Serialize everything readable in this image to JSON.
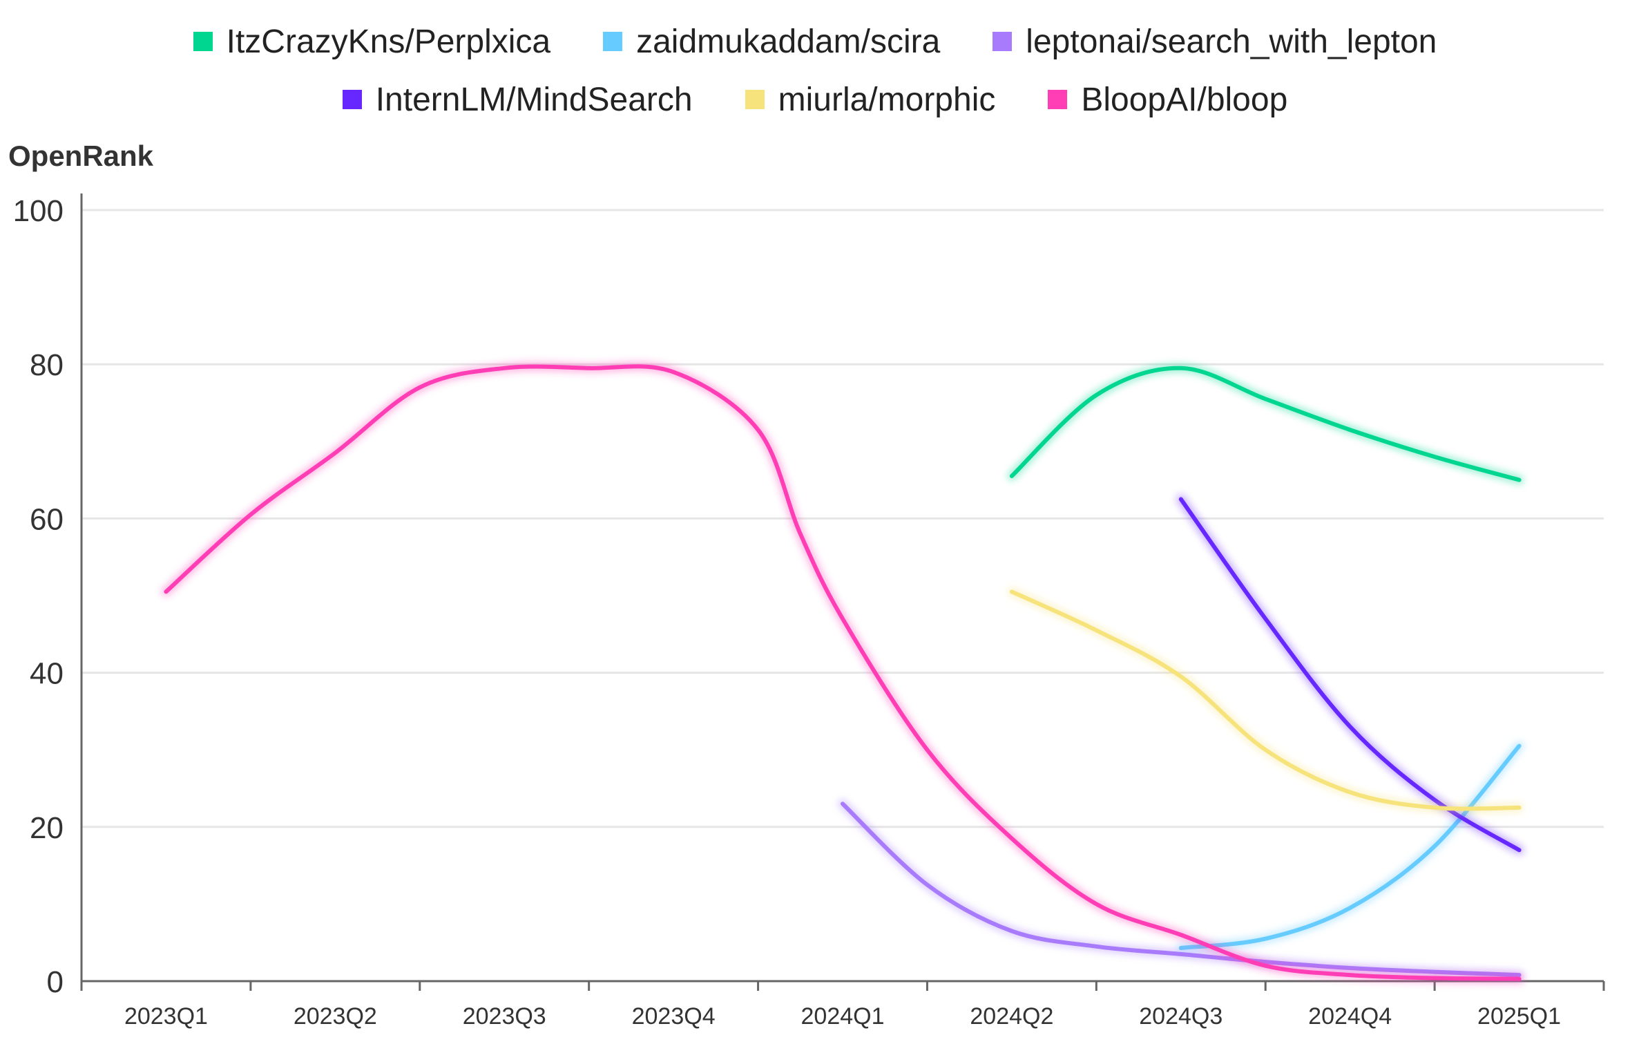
{
  "chart_data": {
    "type": "line",
    "ylabel": "OpenRank",
    "categories": [
      "2023Q1",
      "2023Q2",
      "2023Q3",
      "2023Q4",
      "2024Q1",
      "2024Q2",
      "2024Q3",
      "2024Q4",
      "2025Q1"
    ],
    "ylim": [
      0,
      100
    ],
    "yticks": [
      0,
      20,
      40,
      60,
      80,
      100
    ],
    "grid": true,
    "legend_position": "top",
    "series": [
      {
        "name": "ItzCrazyKns/Perplxica",
        "color": "#00D68F",
        "points": [
          [
            5,
            65.5
          ],
          [
            5.5,
            76
          ],
          [
            6,
            79.5
          ],
          [
            6.5,
            75.5
          ],
          [
            7,
            71.5
          ],
          [
            7.5,
            68
          ],
          [
            8,
            65
          ]
        ]
      },
      {
        "name": "zaidmukaddam/scira",
        "color": "#66CCFF",
        "points": [
          [
            6,
            4.3
          ],
          [
            6.5,
            5.5
          ],
          [
            7,
            9.5
          ],
          [
            7.5,
            17.5
          ],
          [
            8,
            30.5
          ]
        ]
      },
      {
        "name": "leptonai/search_with_lepton",
        "color": "#A77BFB",
        "points": [
          [
            4,
            23
          ],
          [
            4.5,
            12.5
          ],
          [
            5,
            6.5
          ],
          [
            5.5,
            4.5
          ],
          [
            6,
            3.5
          ],
          [
            6.5,
            2.5
          ],
          [
            7,
            1.7
          ],
          [
            7.5,
            1.2
          ],
          [
            8,
            0.8
          ]
        ]
      },
      {
        "name": "InternLM/MindSearch",
        "color": "#6628FF",
        "points": [
          [
            6,
            62.5
          ],
          [
            6.5,
            47
          ],
          [
            7,
            33
          ],
          [
            7.5,
            23.5
          ],
          [
            8,
            17
          ]
        ]
      },
      {
        "name": "miurla/morphic",
        "color": "#F7E37B",
        "points": [
          [
            5,
            50.5
          ],
          [
            5.5,
            45.5
          ],
          [
            6,
            39.5
          ],
          [
            6.5,
            30
          ],
          [
            7,
            24.5
          ],
          [
            7.5,
            22.5
          ],
          [
            8,
            22.5
          ]
        ]
      },
      {
        "name": "BloopAI/bloop",
        "color": "#FF3EB5",
        "points": [
          [
            0,
            50.5
          ],
          [
            0.5,
            60.5
          ],
          [
            1,
            68.5
          ],
          [
            1.5,
            77
          ],
          [
            2,
            79.5
          ],
          [
            2.5,
            79.5
          ],
          [
            3,
            79
          ],
          [
            3.5,
            71.5
          ],
          [
            3.75,
            58
          ],
          [
            4,
            47
          ],
          [
            4.5,
            30
          ],
          [
            5,
            18.5
          ],
          [
            5.5,
            10
          ],
          [
            6,
            6
          ],
          [
            6.5,
            2
          ],
          [
            7,
            0.8
          ],
          [
            7.5,
            0.4
          ],
          [
            8,
            0.3
          ]
        ]
      }
    ]
  }
}
